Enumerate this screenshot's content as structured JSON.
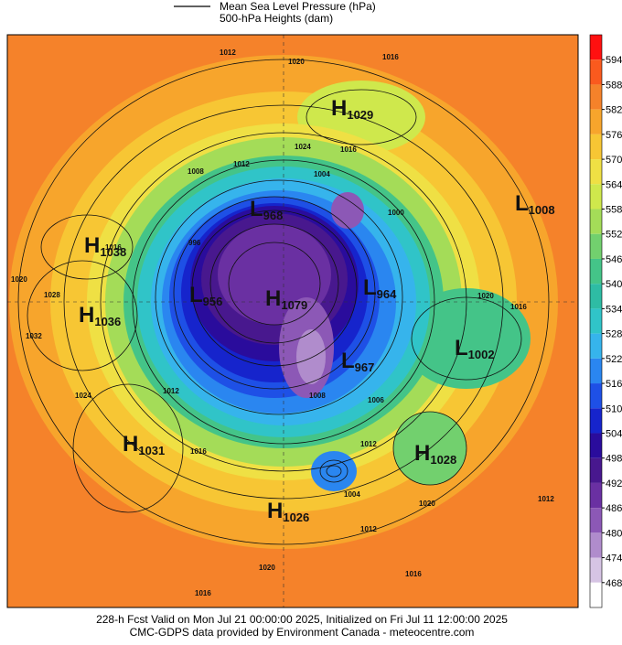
{
  "legend": {
    "line_label": "Mean Sea Level Pressure (hPa)",
    "heights_label": "500-hPa Heights (dam)"
  },
  "colorbar": {
    "labels": [
      "594",
      "588",
      "582",
      "576",
      "570",
      "564",
      "558",
      "552",
      "546",
      "540",
      "534",
      "528",
      "522",
      "516",
      "510",
      "504",
      "498",
      "492",
      "486",
      "480",
      "474",
      "468"
    ],
    "colors": [
      "#ff1010",
      "#fa5a1e",
      "#f5822a",
      "#f7a52c",
      "#f7c634",
      "#efe044",
      "#cfe84c",
      "#a4dc58",
      "#72d06e",
      "#44c488",
      "#2ebca4",
      "#30c4c8",
      "#36b4ec",
      "#2a86f0",
      "#1e50e6",
      "#1624cc",
      "#2a0c9c",
      "#48188e",
      "#6a30a2",
      "#8c58b6",
      "#b08ccc",
      "#d6c4e4",
      "#ffffff"
    ]
  },
  "pressure_centers": [
    {
      "letter": "H",
      "value": "1029"
    },
    {
      "letter": "H",
      "value": "1038"
    },
    {
      "letter": "H",
      "value": "1036"
    },
    {
      "letter": "H",
      "value": "1031"
    },
    {
      "letter": "H",
      "value": "1026"
    },
    {
      "letter": "H",
      "value": "1028"
    },
    {
      "letter": "L",
      "value": "1002"
    },
    {
      "letter": "L",
      "value": "1008"
    },
    {
      "letter": "L",
      "value": "968"
    },
    {
      "letter": "L",
      "value": "956"
    },
    {
      "letter": "H",
      "value": "1079"
    },
    {
      "letter": "L",
      "value": "964"
    },
    {
      "letter": "L",
      "value": "967"
    }
  ],
  "isobar_labels": [
    "1012",
    "1020",
    "1016",
    "1024",
    "1016",
    "1012",
    "1008",
    "1004",
    "1020",
    "1028",
    "1032",
    "1024",
    "1016",
    "1012",
    "1016",
    "1008",
    "1006",
    "1012",
    "1004",
    "1020",
    "1012",
    "1016",
    "1012",
    "1020",
    "1016",
    "1016",
    "1020",
    "1000",
    "996"
  ],
  "footer": {
    "line1": "228-h Fcst Valid on Mon Jul 21 00:00:00 2025, Initialized on Fri Jul 11 12:00:00 2025",
    "line2": "CMC-GDPS data provided by Environment Canada - meteocentre.com"
  }
}
